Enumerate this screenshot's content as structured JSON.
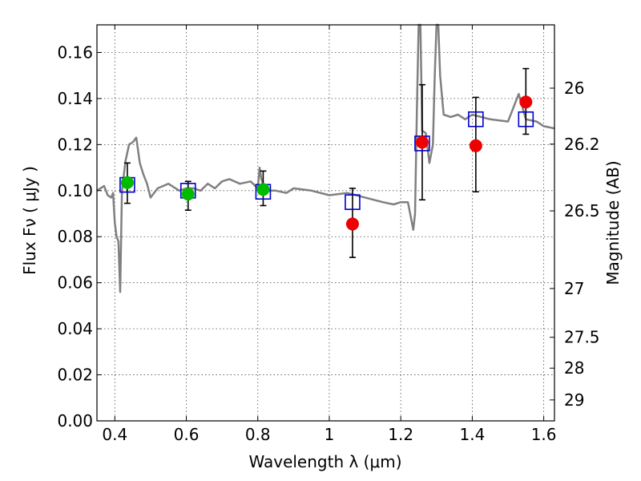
{
  "chart_data": {
    "type": "scatter",
    "title": "",
    "xlabel": "Wavelength  λ (μm)",
    "ylabel": "Flux  Fν  ( μJy )",
    "ylabel_right": "Magnitude (AB)",
    "xlim": [
      0.35,
      1.63
    ],
    "ylim": [
      0.0,
      0.172
    ],
    "grid": true,
    "x_ticks": [
      0.4,
      0.6,
      0.8,
      1.0,
      1.2,
      1.4,
      1.6
    ],
    "x_tick_labels": [
      "0.4",
      "0.6",
      "0.8",
      "1",
      "1.2",
      "1.4",
      "1.6"
    ],
    "y_ticks": [
      0.0,
      0.02,
      0.04,
      0.06,
      0.08,
      0.1,
      0.12,
      0.14,
      0.16
    ],
    "y_tick_labels": [
      "0.00",
      "0.02",
      "0.04",
      "0.06",
      "0.08",
      "0.10",
      "0.12",
      "0.14",
      "0.16"
    ],
    "right_ticks": [
      {
        "label": "26",
        "flux": 0.1445
      },
      {
        "label": "26.2",
        "flux": 0.1202
      },
      {
        "label": "26.5",
        "flux": 0.0912
      },
      {
        "label": "27",
        "flux": 0.0575
      },
      {
        "label": "27.5",
        "flux": 0.0363
      },
      {
        "label": "28",
        "flux": 0.0229
      },
      {
        "label": "29",
        "flux": 0.0091
      }
    ],
    "series": [
      {
        "name": "model spectrum",
        "kind": "line",
        "color": "#808080",
        "x": [
          0.35,
          0.37,
          0.38,
          0.39,
          0.395,
          0.4,
          0.405,
          0.41,
          0.415,
          0.42,
          0.43,
          0.44,
          0.45,
          0.46,
          0.47,
          0.48,
          0.49,
          0.5,
          0.52,
          0.55,
          0.58,
          0.6,
          0.62,
          0.64,
          0.66,
          0.68,
          0.7,
          0.72,
          0.75,
          0.78,
          0.8,
          0.805,
          0.81,
          0.82,
          0.85,
          0.88,
          0.9,
          0.95,
          1.0,
          1.05,
          1.1,
          1.15,
          1.18,
          1.2,
          1.22,
          1.235,
          1.24,
          1.245,
          1.25,
          1.255,
          1.26,
          1.27,
          1.28,
          1.29,
          1.295,
          1.3,
          1.305,
          1.31,
          1.32,
          1.34,
          1.36,
          1.38,
          1.4,
          1.45,
          1.5,
          1.52,
          1.53,
          1.55,
          1.58,
          1.6,
          1.63
        ],
        "y": [
          0.1,
          0.102,
          0.098,
          0.097,
          0.099,
          0.086,
          0.08,
          0.078,
          0.056,
          0.1,
          0.113,
          0.12,
          0.121,
          0.123,
          0.112,
          0.107,
          0.103,
          0.097,
          0.101,
          0.103,
          0.1,
          0.101,
          0.101,
          0.1,
          0.103,
          0.101,
          0.104,
          0.105,
          0.103,
          0.104,
          0.101,
          0.11,
          0.105,
          0.1,
          0.1,
          0.099,
          0.101,
          0.1,
          0.098,
          0.099,
          0.097,
          0.095,
          0.094,
          0.095,
          0.095,
          0.083,
          0.09,
          0.135,
          0.172,
          0.172,
          0.126,
          0.125,
          0.112,
          0.12,
          0.15,
          0.172,
          0.172,
          0.15,
          0.133,
          0.132,
          0.133,
          0.131,
          0.133,
          0.131,
          0.13,
          0.138,
          0.142,
          0.131,
          0.13,
          0.128,
          0.127
        ]
      },
      {
        "name": "observed (green)",
        "kind": "points",
        "color": "#00bb00",
        "points": [
          {
            "x": 0.435,
            "y": 0.1035
          },
          {
            "x": 0.605,
            "y": 0.0985
          },
          {
            "x": 0.815,
            "y": 0.1005
          }
        ]
      },
      {
        "name": "observed (red)",
        "kind": "points",
        "color": "#ee0000",
        "points": [
          {
            "x": 1.065,
            "y": 0.0855
          },
          {
            "x": 1.26,
            "y": 0.121
          },
          {
            "x": 1.41,
            "y": 0.1195
          },
          {
            "x": 1.55,
            "y": 0.1385
          }
        ]
      },
      {
        "name": "model photometry",
        "kind": "open-squares",
        "color": "#0000cc",
        "points": [
          {
            "x": 0.435,
            "y": 0.1025
          },
          {
            "x": 0.605,
            "y": 0.1
          },
          {
            "x": 0.815,
            "y": 0.0995
          },
          {
            "x": 1.065,
            "y": 0.095
          },
          {
            "x": 1.26,
            "y": 0.1205
          },
          {
            "x": 1.41,
            "y": 0.131
          },
          {
            "x": 1.55,
            "y": 0.131
          }
        ]
      },
      {
        "name": "error bars",
        "kind": "errorbars",
        "color": "#000000",
        "bars": [
          {
            "x": 0.435,
            "low": 0.0945,
            "high": 0.112
          },
          {
            "x": 0.605,
            "low": 0.0915,
            "high": 0.104
          },
          {
            "x": 0.815,
            "low": 0.0935,
            "high": 0.1085
          },
          {
            "x": 1.065,
            "low": 0.071,
            "high": 0.101
          },
          {
            "x": 1.26,
            "low": 0.096,
            "high": 0.146
          },
          {
            "x": 1.41,
            "low": 0.0995,
            "high": 0.1405
          },
          {
            "x": 1.55,
            "low": 0.1245,
            "high": 0.153
          }
        ]
      }
    ]
  }
}
